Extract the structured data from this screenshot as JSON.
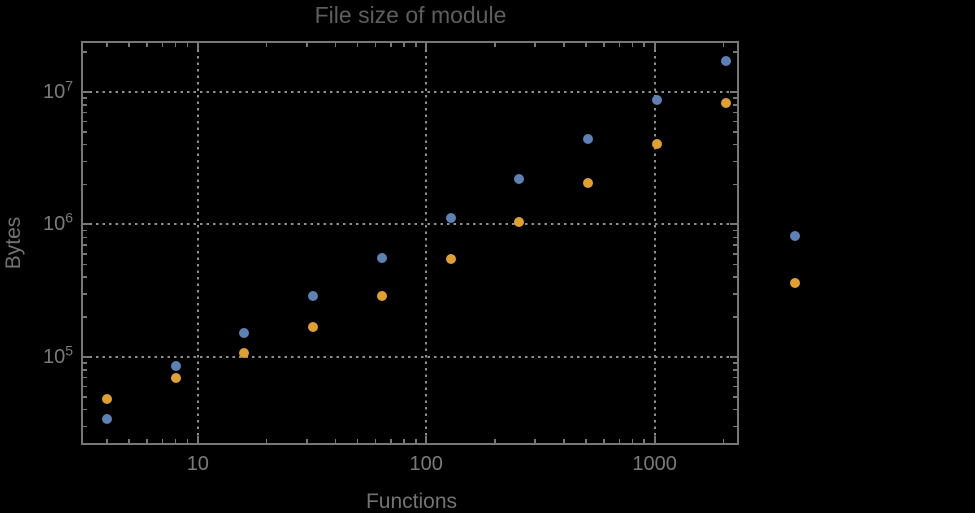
{
  "chart_data": {
    "type": "scatter",
    "title": "File size of module",
    "xlabel": "Functions",
    "ylabel": "Bytes",
    "x_scale": "log",
    "y_scale": "log",
    "xlim": [
      3.08,
      2340
    ],
    "ylim": [
      21670,
      24260000
    ],
    "grid": "dotted-at-decades",
    "legend": "none",
    "x": [
      4,
      8,
      16,
      32,
      64,
      128,
      256,
      512,
      1024,
      2048,
      4096
    ],
    "series": [
      {
        "name": "series-1-blue",
        "color": "#5E81B5",
        "values": [
          34000,
          86000,
          152000,
          290000,
          560000,
          1120000,
          2200000,
          4400000,
          8700000,
          17100000,
          820000
        ]
      },
      {
        "name": "series-2-orange",
        "color": "#E0A030",
        "values": [
          48000,
          69000,
          107000,
          168000,
          290000,
          550000,
          1040000,
          2060000,
          4050000,
          8260000,
          360000
        ]
      }
    ],
    "x_major_ticks": [
      10,
      100,
      1000
    ],
    "x_major_labels": [
      "10",
      "100",
      "1000"
    ],
    "y_major_ticks": [
      100000,
      1000000,
      10000000
    ],
    "y_major_labels": [
      {
        "base": "10",
        "exp": "5"
      },
      {
        "base": "10",
        "exp": "6"
      },
      {
        "base": "10",
        "exp": "7"
      }
    ],
    "colors": {
      "background": "#000000",
      "frame": "#757778",
      "grid": "#8e8e8e",
      "title": "#5d5e60",
      "tick_label": "#7a7a7a",
      "axis_label": "#717375"
    }
  }
}
